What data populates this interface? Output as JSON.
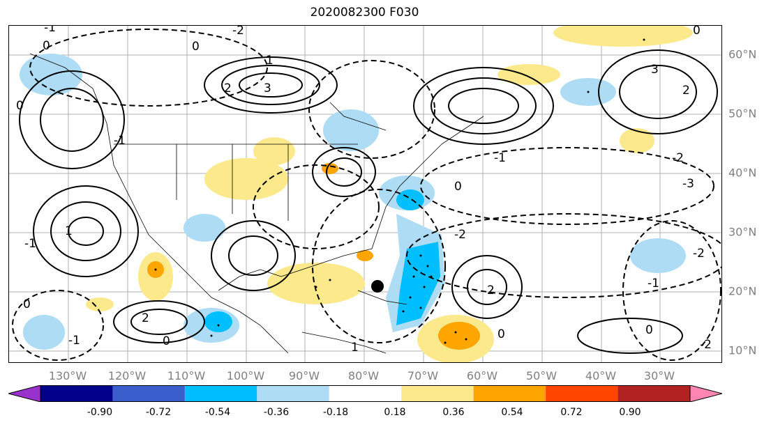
{
  "title": "2020082300 F030",
  "longitude_labels": [
    "130°W",
    "120°W",
    "110°W",
    "100°W",
    "90°W",
    "80°W",
    "70°W",
    "60°W",
    "50°W",
    "40°W",
    "30°W"
  ],
  "latitude_labels": [
    "60°N",
    "50°N",
    "40°N",
    "30°N",
    "20°N",
    "10°N"
  ],
  "contour_labels": [
    "0",
    "-1",
    "-2",
    "2",
    "3",
    "1",
    "0",
    "-1",
    "0",
    "3",
    "2",
    "-1",
    "-2",
    "-3",
    "0",
    "1",
    "-2",
    "2",
    "0",
    "0",
    "-1",
    "2",
    "0",
    "1",
    "-1",
    "0",
    "0",
    "-2",
    "-2",
    "-1"
  ],
  "colorbar": {
    "ticks": [
      "-0.90",
      "-0.72",
      "-0.54",
      "-0.36",
      "-0.18",
      "0.18",
      "0.36",
      "0.54",
      "0.72",
      "0.90"
    ],
    "colors": [
      "#9932CC",
      "#00008B",
      "#3A5FCD",
      "#00BFFF",
      "#AEDCF5",
      "#FFFFFF",
      "#FCE98C",
      "#FFA500",
      "#FF4500",
      "#B22222",
      "#FF86B0"
    ]
  },
  "marker_icon": "storm-center-dot"
}
